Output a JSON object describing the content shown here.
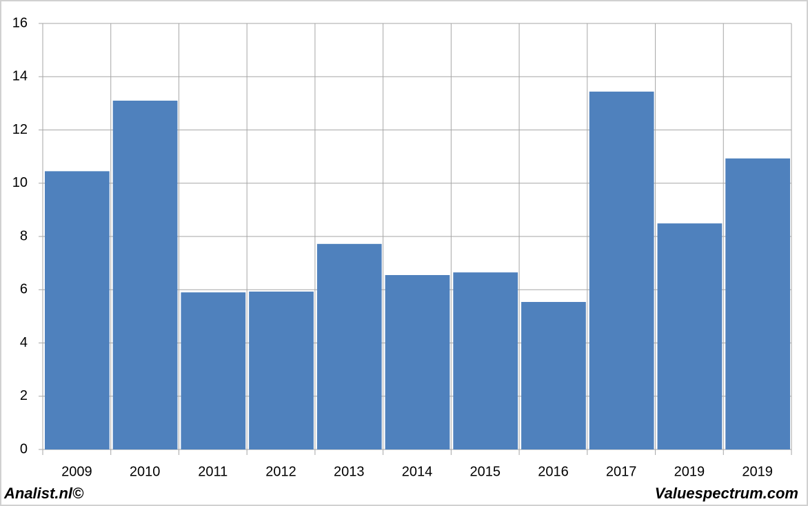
{
  "chart_data": {
    "type": "bar",
    "categories": [
      "2009",
      "2010",
      "2011",
      "2012",
      "2013",
      "2014",
      "2015",
      "2016",
      "2017",
      "2019",
      "2019"
    ],
    "values": [
      10.45,
      13.1,
      5.9,
      5.93,
      7.72,
      6.55,
      6.65,
      5.54,
      13.44,
      8.49,
      10.93
    ],
    "color": "#4f81bd",
    "ylim": [
      0,
      16
    ],
    "yticks": [
      0,
      2,
      4,
      6,
      8,
      10,
      12,
      14,
      16
    ],
    "grid": true,
    "annotations": [
      "Analist.nl©",
      "Valuespectrum.com"
    ]
  }
}
